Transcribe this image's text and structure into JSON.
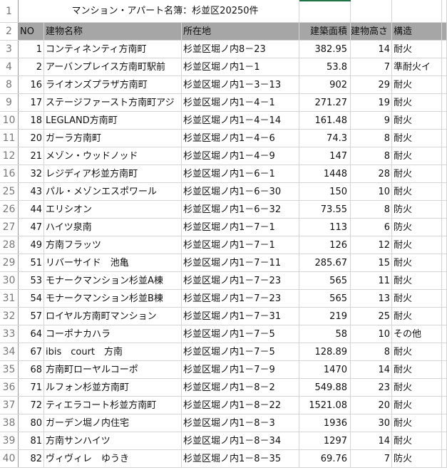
{
  "title": "マンション・アパート名簿：杉並区20250件",
  "headers": {
    "no": "NO",
    "name": "建物名称",
    "address": "所在地",
    "area": "建築面積",
    "height": "建物高さ",
    "structure": "構造"
  },
  "header_bg": "#a6a6a6",
  "rows": [
    {
      "r": "3",
      "no": "1",
      "name": "コンティネンティ方南町",
      "address": "杉並区堀ノ内8－23",
      "area": "382.95",
      "height": "14",
      "structure": "耐火"
    },
    {
      "r": "4",
      "no": "2",
      "name": "アーバンプレイス方南町駅前",
      "address": "杉並区堀ノ内1－1",
      "area": "53.8",
      "height": "7",
      "structure": "準耐火イ"
    },
    {
      "r": "8",
      "no": "16",
      "name": "ライオンズプラザ方南町",
      "address": "杉並区堀ノ内1－3－13",
      "area": "902",
      "height": "29",
      "structure": "耐火"
    },
    {
      "r": "9",
      "no": "17",
      "name": "ステージファースト方南町アジ",
      "address": "杉並区堀ノ内1－4－1",
      "area": "271.27",
      "height": "19",
      "structure": "耐火"
    },
    {
      "r": "10",
      "no": "18",
      "name": "LEGLAND方南町",
      "address": "杉並区堀ノ内1－4－14",
      "area": "161.48",
      "height": "9",
      "structure": "耐火"
    },
    {
      "r": "11",
      "no": "20",
      "name": "ガーラ方南町",
      "address": "杉並区堀ノ内1－4－6",
      "area": "74.3",
      "height": "8",
      "structure": "耐火"
    },
    {
      "r": "12",
      "no": "21",
      "name": "メゾン・ウッドノッド",
      "address": "杉並区堀ノ内1－4－9",
      "area": "147",
      "height": "8",
      "structure": "耐火"
    },
    {
      "r": "16",
      "no": "32",
      "name": "レジディア杉並方南町",
      "address": "杉並区堀ノ内1－6－1",
      "area": "1448",
      "height": "28",
      "structure": "耐火"
    },
    {
      "r": "25",
      "no": "43",
      "name": "パル・メゾンエスポワール",
      "address": "杉並区堀ノ内1－6－30",
      "area": "150",
      "height": "10",
      "structure": "耐火"
    },
    {
      "r": "26",
      "no": "44",
      "name": "エリシオン",
      "address": "杉並区堀ノ内1－6－32",
      "area": "73.55",
      "height": "8",
      "structure": "防火"
    },
    {
      "r": "27",
      "no": "47",
      "name": "ハイツ泉南",
      "address": "杉並区堀ノ内1－7－1",
      "area": "113",
      "height": "6",
      "structure": "防火"
    },
    {
      "r": "28",
      "no": "49",
      "name": "方南フラッツ",
      "address": "杉並区堀ノ内1－7－1",
      "area": "126",
      "height": "12",
      "structure": "耐火"
    },
    {
      "r": "29",
      "no": "51",
      "name": "リバーサイド　池亀",
      "address": "杉並区堀ノ内1－7－11",
      "area": "285.67",
      "height": "15",
      "structure": "耐火"
    },
    {
      "r": "30",
      "no": "53",
      "name": "モナークマンション杉並A棟",
      "address": "杉並区堀ノ内1－7－23",
      "area": "565",
      "height": "11",
      "structure": "耐火"
    },
    {
      "r": "31",
      "no": "54",
      "name": "モナークマンション杉並B棟",
      "address": "杉並区堀ノ内1－7－23",
      "area": "565",
      "height": "13",
      "structure": "耐火"
    },
    {
      "r": "32",
      "no": "57",
      "name": "ロイヤル方南町マンション",
      "address": "杉並区堀ノ内1－7－31",
      "area": "219",
      "height": "25",
      "structure": "耐火"
    },
    {
      "r": "33",
      "no": "64",
      "name": "コーポナカハラ",
      "address": "杉並区堀ノ内1－7－5",
      "area": "58",
      "height": "10",
      "structure": "その他"
    },
    {
      "r": "34",
      "no": "67",
      "name": "ibis　court　方南",
      "address": "杉並区堀ノ内1－7－5",
      "area": "128.89",
      "height": "8",
      "structure": "耐火"
    },
    {
      "r": "35",
      "no": "68",
      "name": "方南町ローヤルコーポ",
      "address": "杉並区堀ノ内1－7－9",
      "area": "1470",
      "height": "14",
      "structure": "耐火"
    },
    {
      "r": "36",
      "no": "71",
      "name": "ルフォン杉並方南町",
      "address": "杉並区堀ノ内1－8－2",
      "area": "549.88",
      "height": "23",
      "structure": "耐火"
    },
    {
      "r": "37",
      "no": "72",
      "name": "ティエラコート杉並方南町",
      "address": "杉並区堀ノ内1－8－22",
      "area": "1521.08",
      "height": "20",
      "structure": "耐火"
    },
    {
      "r": "38",
      "no": "80",
      "name": "ガーデン堀ノ内住宅",
      "address": "杉並区堀ノ内1－8－3",
      "area": "1936",
      "height": "30",
      "structure": "耐火"
    },
    {
      "r": "39",
      "no": "81",
      "name": "方南サンハイツ",
      "address": "杉並区堀ノ内1－8－34",
      "area": "1297",
      "height": "14",
      "structure": "耐火"
    },
    {
      "r": "40",
      "no": "82",
      "name": "ヴィヴィレ　ゆうき",
      "address": "杉並区堀ノ内1－8－35",
      "area": "69.76",
      "height": "7",
      "structure": "防火"
    }
  ]
}
